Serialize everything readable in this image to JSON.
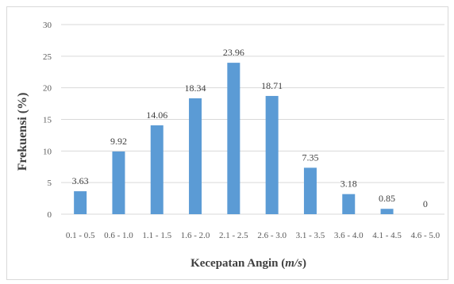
{
  "chart_data": {
    "type": "bar",
    "categories": [
      "0.1 - 0.5",
      "0.6 - 1.0",
      "1.1 - 1.5",
      "1.6 - 2.0",
      "2.1 - 2.5",
      "2.6 - 3.0",
      "3.1 - 3.5",
      "3.6 - 4.0",
      "4.1 - 4.5",
      "4.6 - 5.0"
    ],
    "values": [
      3.63,
      9.92,
      14.06,
      18.34,
      23.96,
      18.71,
      7.35,
      3.18,
      0.85,
      0
    ],
    "data_labels": [
      "3.63",
      "9.92",
      "14.06",
      "18.34",
      "23.96",
      "18.71",
      "7.35",
      "3.18",
      "0.85",
      "0"
    ],
    "title": "",
    "xlabel": "Kecepatan Angin (m/s)",
    "xlabel_main": "Kecepatan Angin (",
    "xlabel_unit": "m/s",
    "xlabel_close": ")",
    "ylabel": "Frekuensi (%)",
    "ylim": [
      0,
      30
    ],
    "yticks": [
      0,
      5,
      10,
      15,
      20,
      25,
      30
    ],
    "grid": true,
    "legend": "none",
    "bar_color": "#5b9bd5",
    "grid_color": "#d9d9d9"
  }
}
